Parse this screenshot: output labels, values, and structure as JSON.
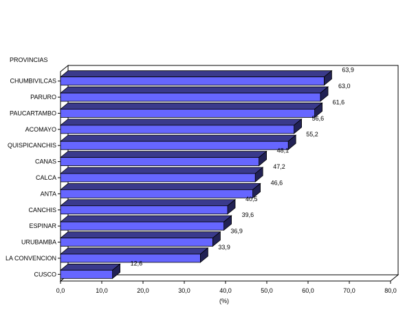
{
  "chart_data": {
    "type": "bar",
    "orientation": "horizontal",
    "style": "3d",
    "grid": false,
    "legend": "none",
    "title": "",
    "ylabel": "PROVINCIAS",
    "xlabel": "(%)",
    "xlim": [
      0,
      80
    ],
    "x_ticks": [
      "0,0",
      "10,0",
      "20,0",
      "30,0",
      "40,0",
      "50,0",
      "60,0",
      "70,0",
      "80,0"
    ],
    "categories": [
      "CHUMBIVILCAS",
      "PARURO",
      "PAUCARTAMBO",
      "ACOMAYO",
      "QUISPICANCHIS",
      "CANAS",
      "CALCA",
      "ANTA",
      "CANCHIS",
      "ESPINAR",
      "URUBAMBA",
      "LA CONVENCION",
      "CUSCO"
    ],
    "values": [
      63.9,
      63.0,
      61.6,
      56.6,
      55.2,
      48.1,
      47.2,
      46.6,
      40.5,
      39.6,
      36.9,
      33.9,
      12.6
    ],
    "value_labels": [
      "63,9",
      "63,0",
      "61,6",
      "56,6",
      "55,2",
      "48,1",
      "47,2",
      "46,6",
      "40,5",
      "39,6",
      "36,9",
      "33,9",
      "12,6"
    ],
    "colors": {
      "bar_front": "#6666ff",
      "bar_top": "#3a3a8c",
      "bar_side": "#222255",
      "axis": "#000000"
    }
  }
}
